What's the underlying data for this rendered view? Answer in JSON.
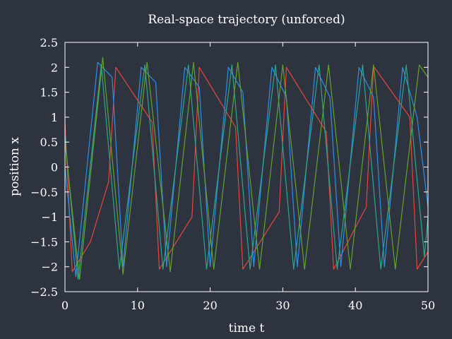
{
  "chart_data": {
    "type": "line",
    "title": "Real-space trajectory (unforced)",
    "xlabel": "time t",
    "ylabel": "position x",
    "xlim": [
      0,
      50
    ],
    "ylim": [
      -2.5,
      2.5
    ],
    "xticks": [
      0,
      10,
      20,
      30,
      40,
      50
    ],
    "xtick_labels": [
      "0",
      "10",
      "20",
      "30",
      "40",
      "50"
    ],
    "yticks": [
      -2.5,
      -2,
      -1.5,
      -1,
      -0.5,
      0,
      0.5,
      1,
      1.5,
      2,
      2.5
    ],
    "ytick_labels": [
      "−2.5",
      "−2",
      "−1.5",
      "−1",
      "−0.5",
      "0",
      "0.5",
      "1",
      "1.5",
      "2",
      "2.5"
    ],
    "grid": false,
    "legend": "none",
    "series": [
      {
        "color": "#e8463a",
        "t": [
          0,
          1,
          3.5,
          6,
          7,
          12,
          13,
          17.5,
          18.5,
          23.5,
          24.5,
          29.5,
          30.5,
          36,
          37,
          41.5,
          42.5,
          47.5,
          48.5,
          50
        ],
        "x": [
          0.9,
          -2.1,
          -1.5,
          -0.3,
          2.0,
          0.9,
          -2.05,
          -1.0,
          2.0,
          0.8,
          -2.05,
          -0.9,
          2.0,
          0.7,
          -2.05,
          -0.8,
          2.02,
          1.0,
          -2.05,
          -1.7
        ]
      },
      {
        "color": "#2f8ee6",
        "t": [
          0,
          1.5,
          4.5,
          6.5,
          8,
          10.5,
          12.5,
          14,
          16.5,
          18.5,
          20,
          22.5,
          24.5,
          26,
          28.5,
          30.5,
          32,
          34.5,
          36.5,
          38,
          40.5,
          42.5,
          44,
          46.5,
          48.5,
          50
        ],
        "x": [
          0.0,
          -2.2,
          2.1,
          1.8,
          -2.0,
          2.0,
          1.7,
          -2.0,
          2.0,
          1.6,
          -2.0,
          2.0,
          1.5,
          -2.0,
          2.0,
          1.4,
          -2.0,
          2.0,
          1.4,
          -2.0,
          2.0,
          1.4,
          -2.0,
          2.0,
          1.0,
          -0.8
        ]
      },
      {
        "color": "#2fa58c",
        "t": [
          0,
          1.8,
          5,
          7.5,
          11,
          13.5,
          17,
          19.5,
          23,
          25.5,
          29,
          31.5,
          35,
          37.5,
          41,
          43.5,
          47,
          49.5,
          50
        ],
        "x": [
          0.6,
          -2.25,
          2.05,
          -2.05,
          2.05,
          -2.05,
          2.05,
          -2.05,
          2.05,
          -2.05,
          2.05,
          -2.05,
          2.05,
          -2.05,
          2.05,
          -2.05,
          2.05,
          -1.8,
          -1.0
        ]
      },
      {
        "color": "#62a32b",
        "t": [
          0,
          2,
          5.2,
          8,
          11.3,
          14.5,
          17.7,
          20.5,
          23.8,
          26.8,
          30,
          33,
          36.3,
          39.3,
          42.5,
          45.5,
          48.8,
          50
        ],
        "x": [
          0.5,
          -2.25,
          2.2,
          -2.15,
          2.1,
          -2.1,
          2.1,
          -2.05,
          2.1,
          -2.05,
          2.05,
          -2.05,
          2.05,
          -2.05,
          2.05,
          -2.05,
          2.05,
          1.8
        ]
      }
    ]
  }
}
